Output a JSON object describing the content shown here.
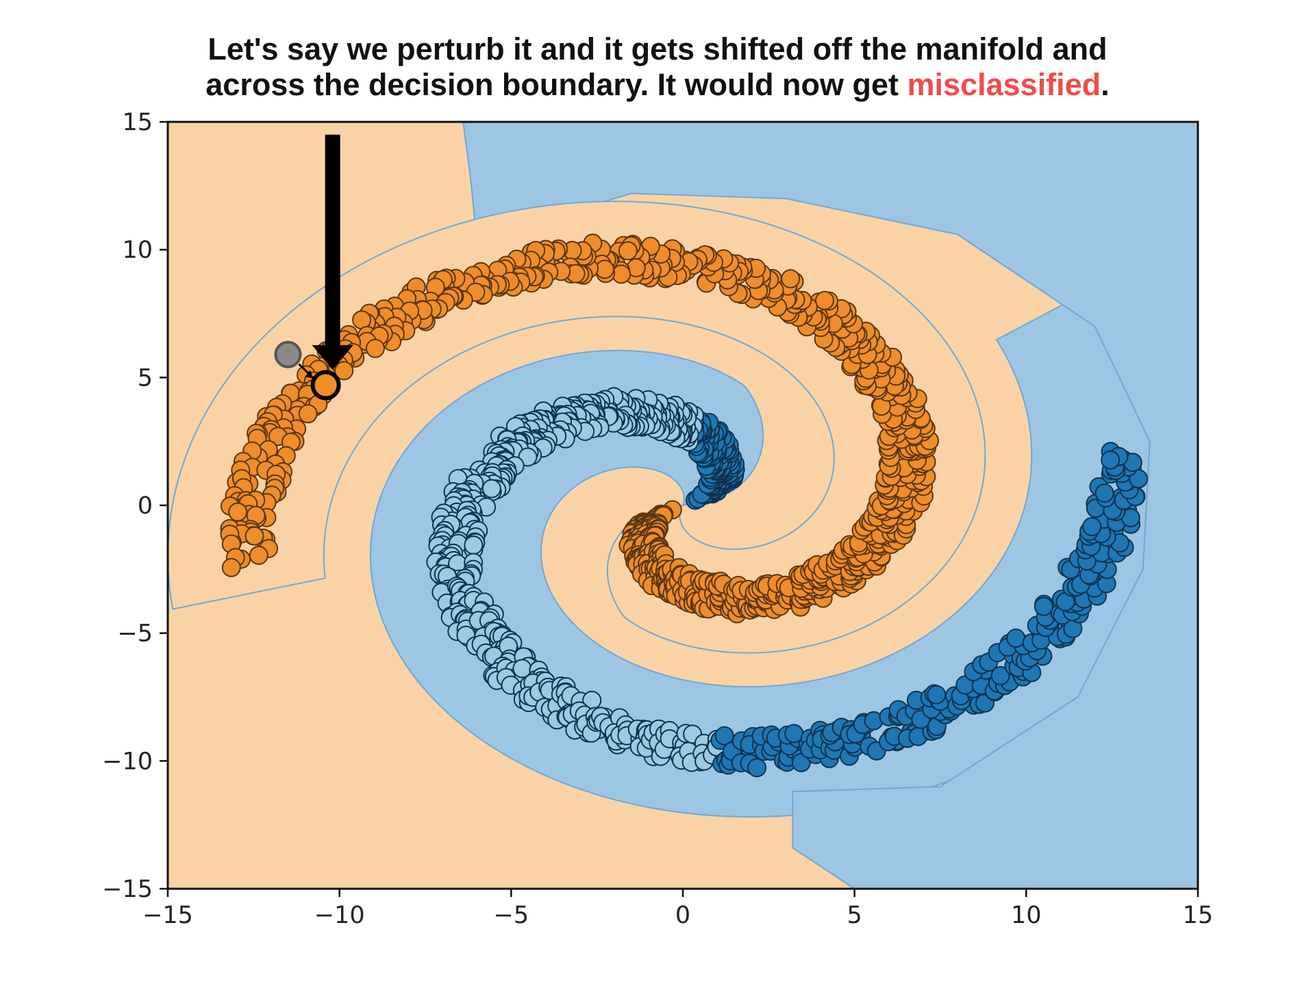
{
  "caption": {
    "line1": "Let's say we perturb it and it gets shifted off the manifold and",
    "line2_before": "across the decision boundary. It would now get ",
    "line2_highlight": "misclassified",
    "line2_after": "."
  },
  "chart_data": {
    "type": "scatter",
    "title": "",
    "xlabel": "",
    "ylabel": "",
    "xlim": [
      -15,
      15
    ],
    "ylim": [
      -15,
      15
    ],
    "x_ticks": [
      "−15",
      "−10",
      "−5",
      "0",
      "5",
      "10",
      "15"
    ],
    "y_ticks": [
      "15",
      "10",
      "5",
      "0",
      "−5",
      "−10",
      "−15"
    ],
    "grid": false,
    "legend": "none",
    "colors": {
      "region_orange": "#f9d3a6",
      "region_blue": "#9dc5e4",
      "boundary": "#6fa8d2",
      "orange_points": "#ef8d2a",
      "dark_blue_points": "#1f77b4",
      "light_blue_points": "#9ecae1",
      "perturbed_original": "#8a8a8a"
    },
    "series": [
      {
        "class": "orange",
        "spiral": "r = 2*theta, rotated by pi",
        "theta_range": [
          0.5,
          6.45
        ]
      },
      {
        "class": "blue",
        "spiral": "r = 2*theta",
        "theta_range": [
          0.5,
          6.45
        ]
      }
    ],
    "annotations": [
      {
        "kind": "original_point",
        "x": -11.5,
        "y": 5.9,
        "color": "#8a8a8a"
      },
      {
        "kind": "perturbed_point",
        "x": -10.4,
        "y": 4.7,
        "color": "#ef8d2a"
      },
      {
        "kind": "arrow",
        "from": [
          -10.2,
          14.5
        ],
        "to": [
          -10.2,
          5.3
        ]
      }
    ]
  }
}
